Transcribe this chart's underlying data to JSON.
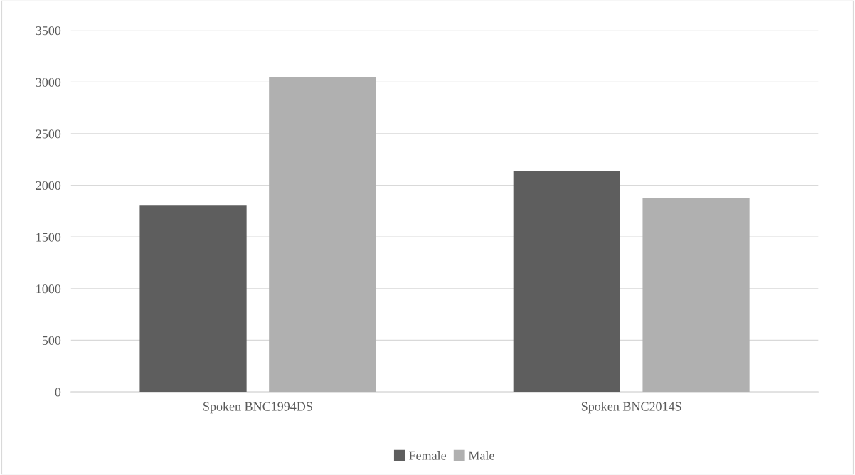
{
  "chart_data": {
    "type": "bar",
    "categories": [
      "Spoken BNC1994DS",
      "Spoken BNC2014S"
    ],
    "series": [
      {
        "name": "Female",
        "color": "#5e5e5e",
        "values": [
          1810,
          2135
        ]
      },
      {
        "name": "Male",
        "color": "#b0b0b0",
        "values": [
          3050,
          1880
        ]
      }
    ],
    "ylim": [
      0,
      3500
    ],
    "yticks": [
      0,
      500,
      1000,
      1500,
      2000,
      2500,
      3000,
      3500
    ],
    "grid": "y",
    "legend": "bottom"
  }
}
